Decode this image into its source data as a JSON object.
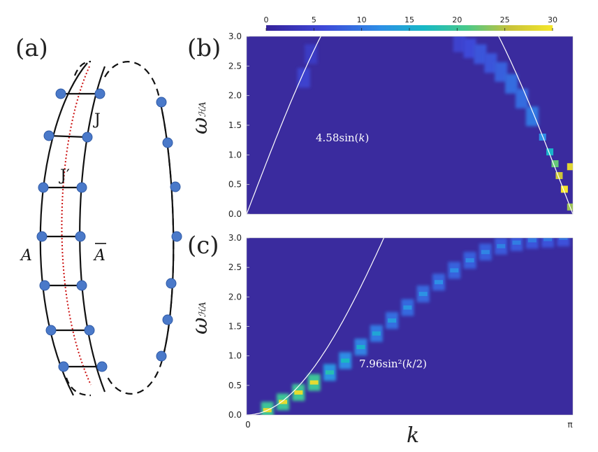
{
  "panels": {
    "a": "(a)",
    "b": "(b)",
    "c": "(c)"
  },
  "lattice": {
    "label_J": "J",
    "label_Jp": "J′",
    "label_A": "A",
    "label_Abar": "A",
    "colors": {
      "site": "#4a79c9",
      "dotted": "#cc1111",
      "line": "#111111"
    }
  },
  "chart_data": [
    {
      "id": "b",
      "type": "heatmap",
      "xlabel": "k",
      "ylabel": "ω",
      "ylabel_sub": "ℋA",
      "x_range": [
        0,
        3.14159
      ],
      "ylim": [
        0,
        3.0
      ],
      "yticks": [
        "0.0",
        "0.5",
        "1.0",
        "1.5",
        "2.0",
        "2.5",
        "3.0"
      ],
      "xticks": [],
      "colorbar": {
        "min": 0,
        "max": 30,
        "ticks": [
          "0",
          "5",
          "10",
          "15",
          "20",
          "25",
          "30"
        ]
      },
      "curve": {
        "label_coef": "4.58sin(",
        "label_var": "k",
        "label_end": ")",
        "amplitude": 4.58,
        "form": "sin(k)"
      },
      "features": [
        {
          "k": 0.55,
          "w": 2.3,
          "v": 5
        },
        {
          "k": 0.62,
          "w": 2.7,
          "v": 4
        },
        {
          "k": 2.05,
          "w": 2.9,
          "v": 5
        },
        {
          "k": 2.15,
          "w": 2.8,
          "v": 6
        },
        {
          "k": 2.25,
          "w": 2.7,
          "v": 7
        },
        {
          "k": 2.35,
          "w": 2.55,
          "v": 7
        },
        {
          "k": 2.45,
          "w": 2.4,
          "v": 8
        },
        {
          "k": 2.55,
          "w": 2.2,
          "v": 9
        },
        {
          "k": 2.65,
          "w": 1.95,
          "v": 9
        },
        {
          "k": 2.75,
          "w": 1.65,
          "v": 10
        },
        {
          "k": 2.85,
          "w": 1.3,
          "v": 12
        },
        {
          "k": 2.92,
          "w": 1.05,
          "v": 16
        },
        {
          "k": 2.97,
          "w": 0.85,
          "v": 22
        },
        {
          "k": 3.01,
          "w": 0.65,
          "v": 26
        },
        {
          "k": 3.06,
          "w": 0.42,
          "v": 30
        },
        {
          "k": 3.12,
          "w": 0.8,
          "v": 28
        },
        {
          "k": 3.12,
          "w": 0.12,
          "v": 24
        }
      ]
    },
    {
      "id": "c",
      "type": "heatmap",
      "xlabel": "k",
      "ylabel": "ω",
      "ylabel_sub": "ℋA",
      "x_range": [
        0,
        3.14159
      ],
      "ylim": [
        0,
        3.0
      ],
      "yticks": [
        "0.0",
        "0.5",
        "1.0",
        "1.5",
        "2.0",
        "2.5",
        "3.0"
      ],
      "xticks": [
        "0",
        "π"
      ],
      "curve": {
        "label_coef": "7.96sin²(",
        "label_var": "k",
        "label_end": "/2)",
        "amplitude": 7.96,
        "form": "sin^2(k/2)"
      },
      "band": [
        {
          "k": 0.2,
          "w": 0.08
        },
        {
          "k": 0.35,
          "w": 0.22
        },
        {
          "k": 0.5,
          "w": 0.38
        },
        {
          "k": 0.65,
          "w": 0.55
        },
        {
          "k": 0.8,
          "w": 0.72
        },
        {
          "k": 0.95,
          "w": 0.92
        },
        {
          "k": 1.1,
          "w": 1.15
        },
        {
          "k": 1.25,
          "w": 1.38
        },
        {
          "k": 1.4,
          "w": 1.6
        },
        {
          "k": 1.55,
          "w": 1.82
        },
        {
          "k": 1.7,
          "w": 2.05
        },
        {
          "k": 1.85,
          "w": 2.25
        },
        {
          "k": 2.0,
          "w": 2.45
        },
        {
          "k": 2.15,
          "w": 2.62
        },
        {
          "k": 2.3,
          "w": 2.76
        },
        {
          "k": 2.45,
          "w": 2.86
        },
        {
          "k": 2.6,
          "w": 2.92
        },
        {
          "k": 2.75,
          "w": 2.96
        },
        {
          "k": 2.9,
          "w": 2.98
        },
        {
          "k": 3.05,
          "w": 3.0
        }
      ]
    }
  ]
}
